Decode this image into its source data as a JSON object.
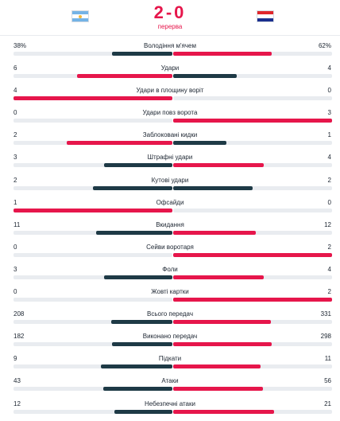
{
  "match": {
    "score": "2-0",
    "status": "перерва",
    "home_flag": "flag-argentina-icon",
    "away_flag": "flag-croatia-icon"
  },
  "colors": {
    "accent": "#e6164b",
    "dark": "#1e3a46",
    "track": "#e9ecf0"
  },
  "stats": [
    {
      "label": "Володіння м'ячем",
      "home": "38%",
      "away": "62%",
      "home_val": 38,
      "away_val": 62
    },
    {
      "label": "Удари",
      "home": "6",
      "away": "4",
      "home_val": 6,
      "away_val": 4
    },
    {
      "label": "Удари в площину воріт",
      "home": "4",
      "away": "0",
      "home_val": 4,
      "away_val": 0
    },
    {
      "label": "Удари повз ворота",
      "home": "0",
      "away": "3",
      "home_val": 0,
      "away_val": 3
    },
    {
      "label": "Заблоковані кидки",
      "home": "2",
      "away": "1",
      "home_val": 2,
      "away_val": 1
    },
    {
      "label": "Штрафні удари",
      "home": "3",
      "away": "4",
      "home_val": 3,
      "away_val": 4
    },
    {
      "label": "Кутові удари",
      "home": "2",
      "away": "2",
      "home_val": 2,
      "away_val": 2
    },
    {
      "label": "Офсайди",
      "home": "1",
      "away": "0",
      "home_val": 1,
      "away_val": 0
    },
    {
      "label": "Вкидання",
      "home": "11",
      "away": "12",
      "home_val": 11,
      "away_val": 12
    },
    {
      "label": "Сейви воротаря",
      "home": "0",
      "away": "2",
      "home_val": 0,
      "away_val": 2
    },
    {
      "label": "Фоли",
      "home": "3",
      "away": "4",
      "home_val": 3,
      "away_val": 4
    },
    {
      "label": "Жовті картки",
      "home": "0",
      "away": "2",
      "home_val": 0,
      "away_val": 2
    },
    {
      "label": "Всього передач",
      "home": "208",
      "away": "331",
      "home_val": 208,
      "away_val": 331
    },
    {
      "label": "Виконано передач",
      "home": "182",
      "away": "298",
      "home_val": 182,
      "away_val": 298
    },
    {
      "label": "Підкати",
      "home": "9",
      "away": "11",
      "home_val": 9,
      "away_val": 11
    },
    {
      "label": "Атаки",
      "home": "43",
      "away": "56",
      "home_val": 43,
      "away_val": 56
    },
    {
      "label": "Небезпечні атаки",
      "home": "12",
      "away": "21",
      "home_val": 12,
      "away_val": 21
    }
  ]
}
